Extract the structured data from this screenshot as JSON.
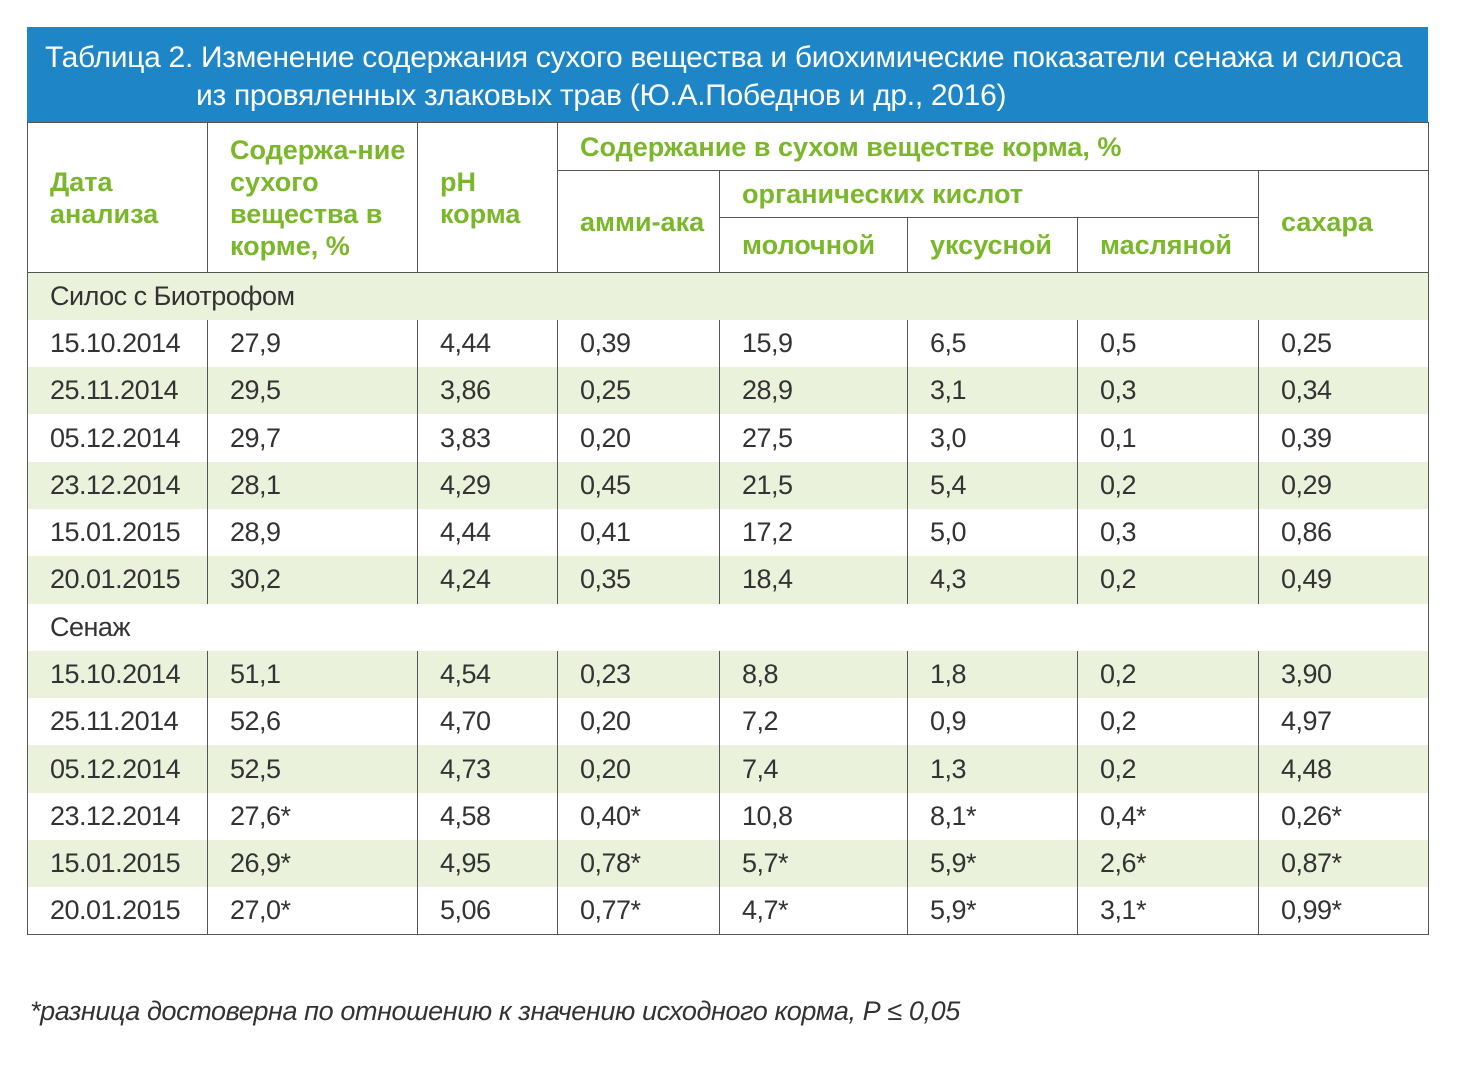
{
  "title": {
    "line1": "Таблица 2. Изменение содержания сухого вещества и биохимические показатели сенажа и силоса",
    "line2": "из провяленных злаковых трав (Ю.А.Победнов и др., 2016)"
  },
  "headers": {
    "date": "Дата анализа",
    "dry_matter": "Содержа-ние сухого вещества в корме, %",
    "ph": "pH корма",
    "group": "Содержание в сухом веществе корма, %",
    "ammonia": "амми-ака",
    "acids": "органических кислот",
    "lactic": "молочной",
    "acetic": "уксусной",
    "butyric": "масляной",
    "sugar": "сахара"
  },
  "groups": [
    {
      "name": "Силос с Биотрофом",
      "rows": [
        [
          "15.10.2014",
          "27,9",
          "4,44",
          "0,39",
          "15,9",
          "6,5",
          "0,5",
          "0,25"
        ],
        [
          "25.11.2014",
          "29,5",
          "3,86",
          "0,25",
          "28,9",
          "3,1",
          "0,3",
          "0,34"
        ],
        [
          "05.12.2014",
          "29,7",
          "3,83",
          "0,20",
          "27,5",
          "3,0",
          "0,1",
          "0,39"
        ],
        [
          "23.12.2014",
          "28,1",
          "4,29",
          "0,45",
          "21,5",
          "5,4",
          "0,2",
          "0,29"
        ],
        [
          "15.01.2015",
          "28,9",
          "4,44",
          "0,41",
          "17,2",
          "5,0",
          "0,3",
          "0,86"
        ],
        [
          "20.01.2015",
          "30,2",
          "4,24",
          "0,35",
          "18,4",
          "4,3",
          "0,2",
          "0,49"
        ]
      ]
    },
    {
      "name": "Сенаж",
      "rows": [
        [
          "15.10.2014",
          "51,1",
          "4,54",
          "0,23",
          "8,8",
          "1,8",
          "0,2",
          "3,90"
        ],
        [
          "25.11.2014",
          "52,6",
          "4,70",
          "0,20",
          "7,2",
          "0,9",
          "0,2",
          "4,97"
        ],
        [
          "05.12.2014",
          "52,5",
          "4,73",
          "0,20",
          "7,4",
          "1,3",
          "0,2",
          "4,48"
        ],
        [
          "23.12.2014",
          "27,6*",
          "4,58",
          "0,40*",
          "10,8",
          "8,1*",
          "0,4*",
          "0,26*"
        ],
        [
          "15.01.2015",
          "26,9*",
          "4,95",
          "0,78*",
          "5,7*",
          "5,9*",
          "2,6*",
          "0,87*"
        ],
        [
          "20.01.2015",
          "27,0*",
          "5,06",
          "0,77*",
          "4,7*",
          "5,9*",
          "3,1*",
          "0,99*"
        ]
      ]
    }
  ],
  "footnote": "*разница достоверна по отношению к значению исходного корма, Р ≤ 0,05",
  "colors": {
    "title_bg": "#1e86c6",
    "header_text": "#7ab72a",
    "row_shade": "#ebf2dc"
  }
}
